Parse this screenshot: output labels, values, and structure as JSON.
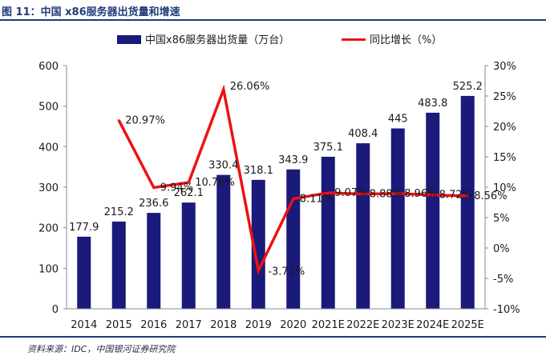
{
  "title": "图 11：中国 x86服务器出货量和增速",
  "source": "资料来源：IDC，中国银河证券研究院",
  "colors": {
    "bar": "#1a1a7a",
    "line": "#ee1111",
    "rule": "#1f3b78"
  },
  "chart_data": {
    "type": "bar",
    "categories": [
      "2014",
      "2015",
      "2016",
      "2017",
      "2018",
      "2019",
      "2020",
      "2021E",
      "2022E",
      "2023E",
      "2024E",
      "2025E"
    ],
    "series": [
      {
        "name": "中国x86服务器出货量（万台）",
        "type": "bar",
        "axis": "left",
        "values": [
          177.9,
          215.2,
          236.6,
          262.1,
          330.4,
          318.1,
          343.9,
          375.1,
          408.4,
          445,
          483.8,
          525.2
        ],
        "labels": [
          "177.9",
          "215.2",
          "236.6",
          "262.1",
          "330.4",
          "318.1",
          "343.9",
          "375.1",
          "408.4",
          "445",
          "483.8",
          "525.2"
        ]
      },
      {
        "name": "同比增长（%）",
        "type": "line",
        "axis": "right",
        "values": [
          null,
          20.97,
          9.94,
          10.78,
          26.06,
          -3.72,
          8.11,
          9.07,
          8.88,
          8.96,
          8.72,
          8.56
        ],
        "labels": [
          "",
          "20.97%",
          "9.94%",
          "10.78%",
          "26.06%",
          "-3.72%",
          "8.11%",
          "9.07%",
          "8.88%",
          "8.96%",
          "8.72%",
          "8.56%"
        ]
      }
    ],
    "y_left": {
      "ylim": [
        0,
        600
      ],
      "ticks": [
        "0",
        "100",
        "200",
        "300",
        "400",
        "500",
        "600"
      ]
    },
    "y_right": {
      "ylim": [
        -10,
        30
      ],
      "ticks": [
        "-10%",
        "-5%",
        "0%",
        "5%",
        "10%",
        "15%",
        "20%",
        "25%",
        "30%"
      ]
    },
    "legend": "top"
  }
}
